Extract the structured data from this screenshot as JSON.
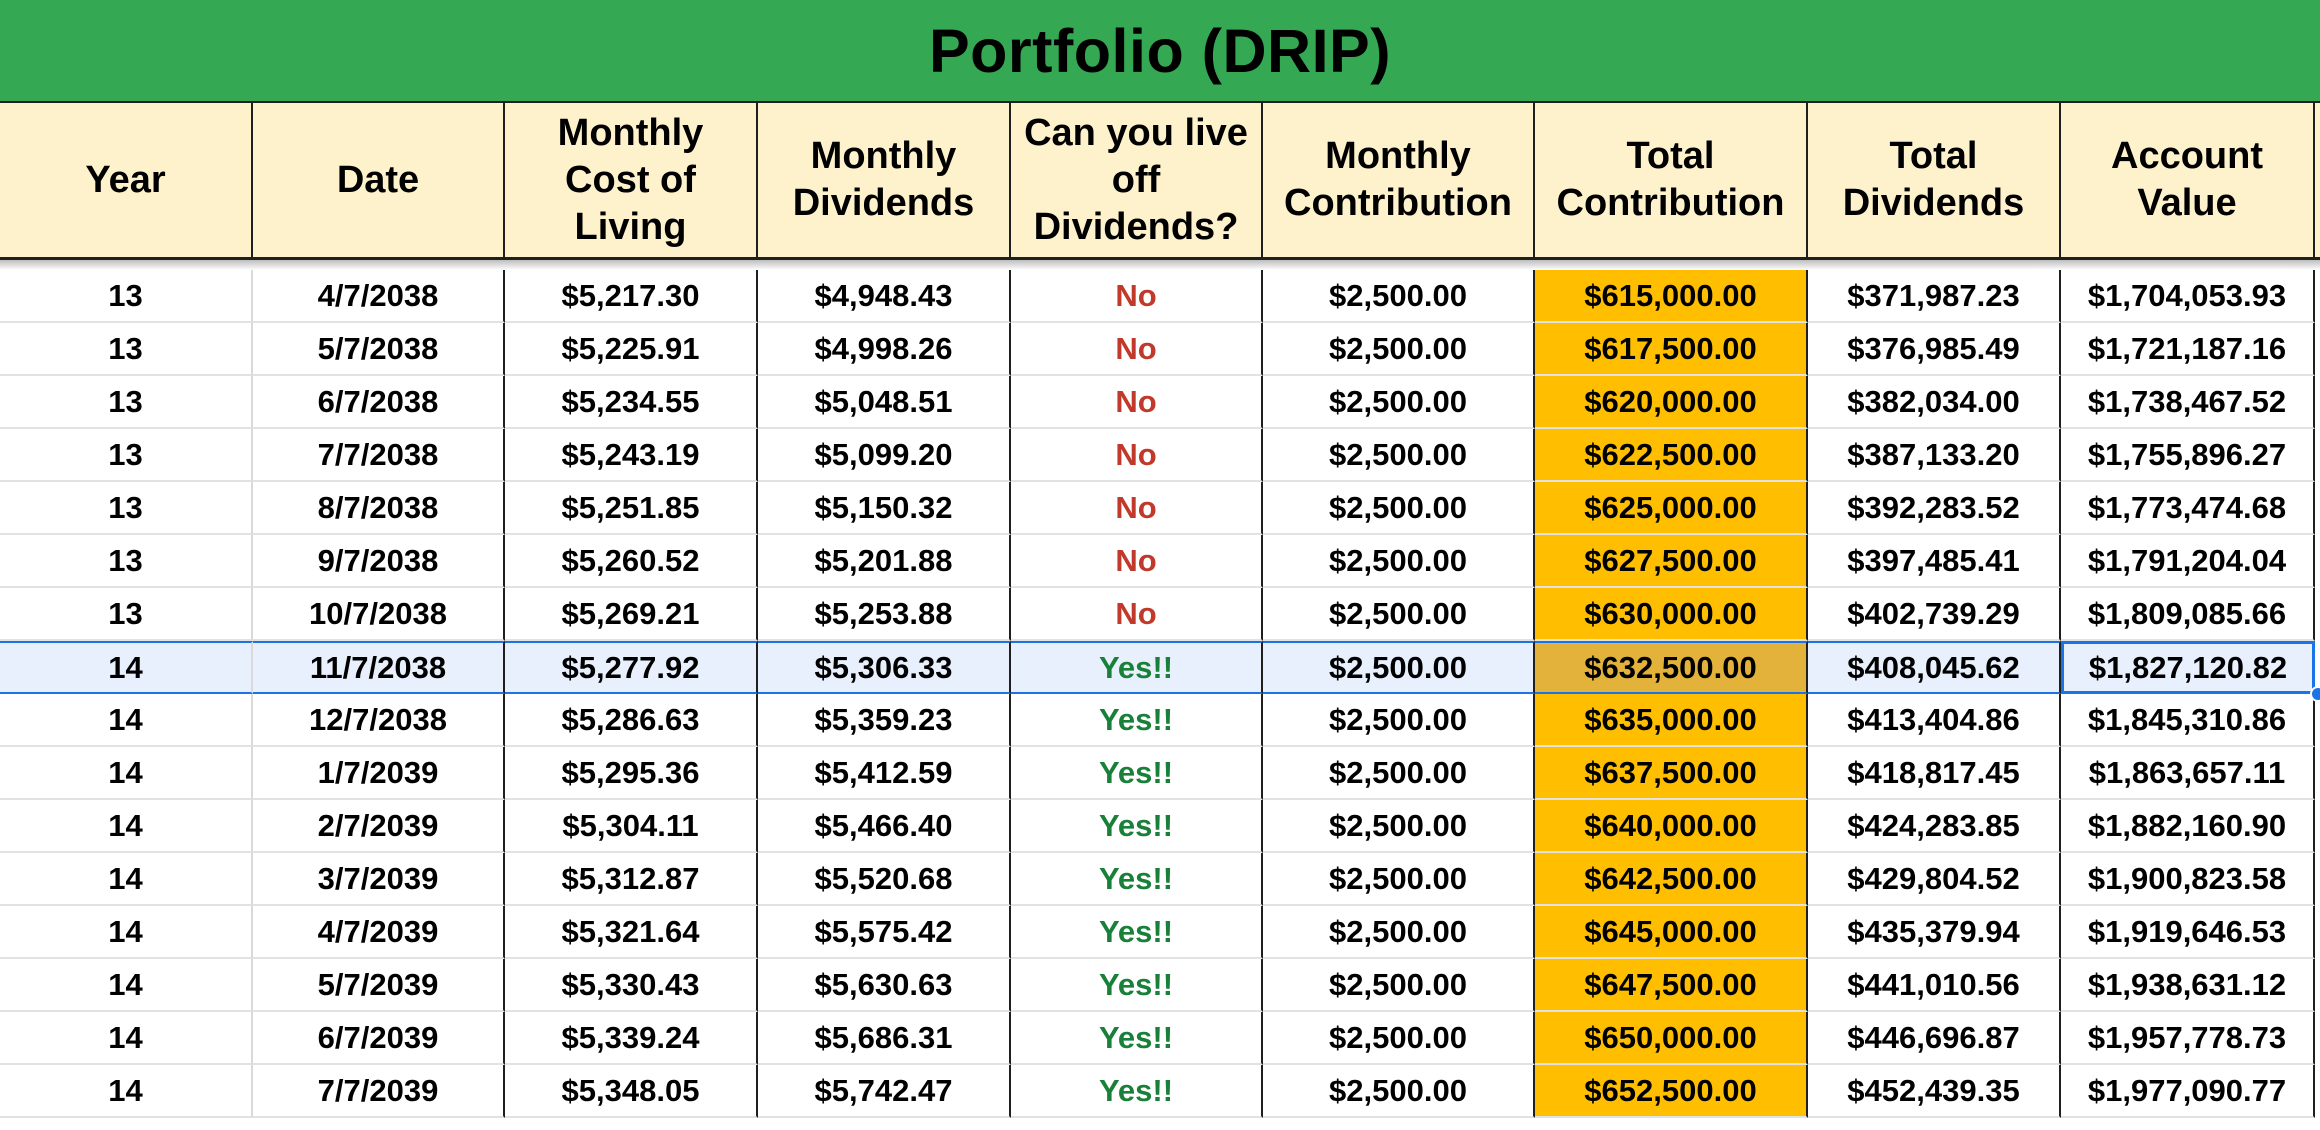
{
  "title": "Portfolio (DRIP)",
  "columns": [
    "Year",
    "Date",
    "Monthly\nCost of\nLiving",
    "Monthly\nDividends",
    "Can you live\noff\nDividends?",
    "Monthly\nContribution",
    "Total\nContribution",
    "Total\nDividends",
    "Account\nValue"
  ],
  "colors": {
    "title_bg": "#34a853",
    "header_bg": "#fef2cc",
    "total_contribution_bg": "#ffbf00",
    "no_text": "#c0392b",
    "yes_text": "#188038",
    "selection": "#1a73e8"
  },
  "selected_row_index": 7,
  "rows": [
    {
      "year": "13",
      "date": "4/7/2038",
      "cost": "$5,217.30",
      "dividends": "$4,948.43",
      "live": "No",
      "contribution": "$2,500.00",
      "total_contribution": "$615,000.00",
      "total_dividends": "$371,987.23",
      "account_value": "$1,704,053.93"
    },
    {
      "year": "13",
      "date": "5/7/2038",
      "cost": "$5,225.91",
      "dividends": "$4,998.26",
      "live": "No",
      "contribution": "$2,500.00",
      "total_contribution": "$617,500.00",
      "total_dividends": "$376,985.49",
      "account_value": "$1,721,187.16"
    },
    {
      "year": "13",
      "date": "6/7/2038",
      "cost": "$5,234.55",
      "dividends": "$5,048.51",
      "live": "No",
      "contribution": "$2,500.00",
      "total_contribution": "$620,000.00",
      "total_dividends": "$382,034.00",
      "account_value": "$1,738,467.52"
    },
    {
      "year": "13",
      "date": "7/7/2038",
      "cost": "$5,243.19",
      "dividends": "$5,099.20",
      "live": "No",
      "contribution": "$2,500.00",
      "total_contribution": "$622,500.00",
      "total_dividends": "$387,133.20",
      "account_value": "$1,755,896.27"
    },
    {
      "year": "13",
      "date": "8/7/2038",
      "cost": "$5,251.85",
      "dividends": "$5,150.32",
      "live": "No",
      "contribution": "$2,500.00",
      "total_contribution": "$625,000.00",
      "total_dividends": "$392,283.52",
      "account_value": "$1,773,474.68"
    },
    {
      "year": "13",
      "date": "9/7/2038",
      "cost": "$5,260.52",
      "dividends": "$5,201.88",
      "live": "No",
      "contribution": "$2,500.00",
      "total_contribution": "$627,500.00",
      "total_dividends": "$397,485.41",
      "account_value": "$1,791,204.04"
    },
    {
      "year": "13",
      "date": "10/7/2038",
      "cost": "$5,269.21",
      "dividends": "$5,253.88",
      "live": "No",
      "contribution": "$2,500.00",
      "total_contribution": "$630,000.00",
      "total_dividends": "$402,739.29",
      "account_value": "$1,809,085.66"
    },
    {
      "year": "14",
      "date": "11/7/2038",
      "cost": "$5,277.92",
      "dividends": "$5,306.33",
      "live": "Yes!!",
      "contribution": "$2,500.00",
      "total_contribution": "$632,500.00",
      "total_dividends": "$408,045.62",
      "account_value": "$1,827,120.82"
    },
    {
      "year": "14",
      "date": "12/7/2038",
      "cost": "$5,286.63",
      "dividends": "$5,359.23",
      "live": "Yes!!",
      "contribution": "$2,500.00",
      "total_contribution": "$635,000.00",
      "total_dividends": "$413,404.86",
      "account_value": "$1,845,310.86"
    },
    {
      "year": "14",
      "date": "1/7/2039",
      "cost": "$5,295.36",
      "dividends": "$5,412.59",
      "live": "Yes!!",
      "contribution": "$2,500.00",
      "total_contribution": "$637,500.00",
      "total_dividends": "$418,817.45",
      "account_value": "$1,863,657.11"
    },
    {
      "year": "14",
      "date": "2/7/2039",
      "cost": "$5,304.11",
      "dividends": "$5,466.40",
      "live": "Yes!!",
      "contribution": "$2,500.00",
      "total_contribution": "$640,000.00",
      "total_dividends": "$424,283.85",
      "account_value": "$1,882,160.90"
    },
    {
      "year": "14",
      "date": "3/7/2039",
      "cost": "$5,312.87",
      "dividends": "$5,520.68",
      "live": "Yes!!",
      "contribution": "$2,500.00",
      "total_contribution": "$642,500.00",
      "total_dividends": "$429,804.52",
      "account_value": "$1,900,823.58"
    },
    {
      "year": "14",
      "date": "4/7/2039",
      "cost": "$5,321.64",
      "dividends": "$5,575.42",
      "live": "Yes!!",
      "contribution": "$2,500.00",
      "total_contribution": "$645,000.00",
      "total_dividends": "$435,379.94",
      "account_value": "$1,919,646.53"
    },
    {
      "year": "14",
      "date": "5/7/2039",
      "cost": "$5,330.43",
      "dividends": "$5,630.63",
      "live": "Yes!!",
      "contribution": "$2,500.00",
      "total_contribution": "$647,500.00",
      "total_dividends": "$441,010.56",
      "account_value": "$1,938,631.12"
    },
    {
      "year": "14",
      "date": "6/7/2039",
      "cost": "$5,339.24",
      "dividends": "$5,686.31",
      "live": "Yes!!",
      "contribution": "$2,500.00",
      "total_contribution": "$650,000.00",
      "total_dividends": "$446,696.87",
      "account_value": "$1,957,778.73"
    },
    {
      "year": "14",
      "date": "7/7/2039",
      "cost": "$5,348.05",
      "dividends": "$5,742.47",
      "live": "Yes!!",
      "contribution": "$2,500.00",
      "total_contribution": "$652,500.00",
      "total_dividends": "$452,439.35",
      "account_value": "$1,977,090.77"
    }
  ]
}
